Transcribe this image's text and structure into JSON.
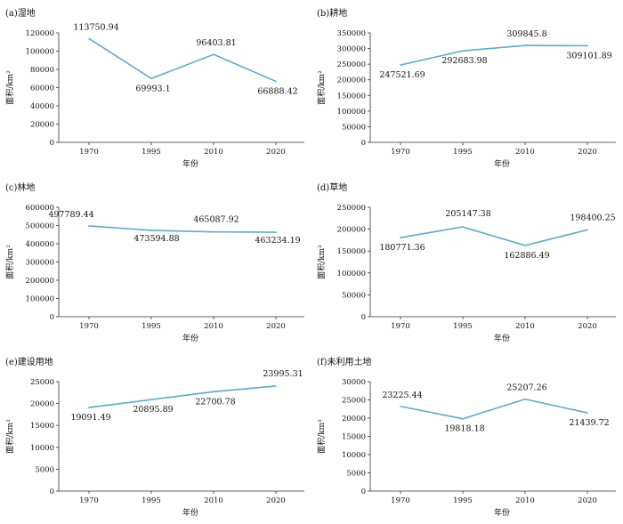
{
  "chart_data": [
    {
      "type": "line",
      "title": "(a)湿地",
      "xlabel": "年份",
      "ylabel": "面积/km²",
      "categories": [
        "1970",
        "1995",
        "2010",
        "2020"
      ],
      "values": [
        113750.94,
        69993.1,
        96403.81,
        66888.42
      ],
      "data_labels": [
        "113750.94",
        "69993.1",
        "96403.81",
        "66888.42"
      ],
      "yticks": [
        "0",
        "20000",
        "40000",
        "60000",
        "80000",
        "100000",
        "120000"
      ],
      "ylim": [
        0,
        120000
      ],
      "color": "#5fa9c9"
    },
    {
      "type": "line",
      "title": "(b)耕地",
      "xlabel": "年份",
      "ylabel": "面积/km²",
      "categories": [
        "1970",
        "1995",
        "2010",
        "2020"
      ],
      "values": [
        247521.69,
        292683.98,
        309845.8,
        309101.89
      ],
      "data_labels": [
        "247521.69",
        "292683.98",
        "309845.8",
        "309101.89"
      ],
      "yticks": [
        "0",
        "50000",
        "100000",
        "150000",
        "200000",
        "250000",
        "300000",
        "350000"
      ],
      "ylim": [
        0,
        350000
      ],
      "color": "#5fa9c9"
    },
    {
      "type": "line",
      "title": "(c)林地",
      "xlabel": "年份",
      "ylabel": "面积/km²",
      "categories": [
        "1970",
        "1995",
        "2010",
        "2020"
      ],
      "values": [
        497789.44,
        473594.88,
        465087.92,
        463234.19
      ],
      "data_labels": [
        "497789.44",
        "473594.88",
        "465087.92",
        "463234.19"
      ],
      "yticks": [
        "0",
        "100000",
        "200000",
        "300000",
        "400000",
        "500000",
        "600000"
      ],
      "ylim": [
        0,
        600000
      ],
      "color": "#5fa9c9"
    },
    {
      "type": "line",
      "title": "(d)草地",
      "xlabel": "年份",
      "ylabel": "面积/km²",
      "categories": [
        "1970",
        "1995",
        "2010",
        "2020"
      ],
      "values": [
        180771.36,
        205147.38,
        162886.49,
        198400.25
      ],
      "data_labels": [
        "180771.36",
        "205147.38",
        "162886.49",
        "198400.25"
      ],
      "yticks": [
        "0",
        "50000",
        "100000",
        "150000",
        "200000",
        "250000"
      ],
      "ylim": [
        0,
        250000
      ],
      "color": "#5fa9c9"
    },
    {
      "type": "line",
      "title": "(e)建设用地",
      "xlabel": "年份",
      "ylabel": "面积/km²",
      "categories": [
        "1970",
        "1995",
        "2010",
        "2020"
      ],
      "values": [
        19091.49,
        20895.89,
        22700.78,
        23995.31
      ],
      "data_labels": [
        "19091.49",
        "20895.89",
        "22700.78",
        "23995.31"
      ],
      "yticks": [
        "0",
        "5000",
        "10000",
        "15000",
        "20000",
        "25000"
      ],
      "ylim": [
        0,
        25000
      ],
      "color": "#5fa9c9"
    },
    {
      "type": "line",
      "title": "(f)未利用土地",
      "xlabel": "年份",
      "ylabel": "面积/km²",
      "categories": [
        "1970",
        "1995",
        "2010",
        "2020"
      ],
      "values": [
        23225.44,
        19818.18,
        25207.26,
        21439.72
      ],
      "data_labels": [
        "23225.44",
        "19818.18",
        "25207.26",
        "21439.72"
      ],
      "yticks": [
        "0",
        "5000",
        "10000",
        "15000",
        "20000",
        "25000",
        "30000"
      ],
      "ylim": [
        0,
        30000
      ],
      "color": "#5fa9c9"
    }
  ]
}
